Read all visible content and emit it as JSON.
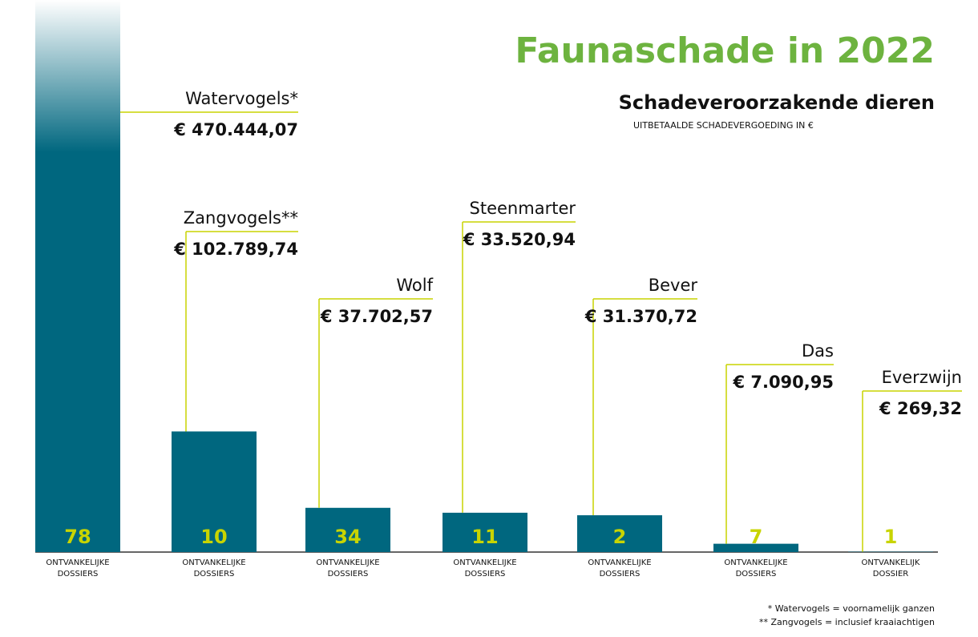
{
  "chart_data": {
    "type": "bar",
    "title": "Faunaschade in 2022",
    "subtitle": "Schadeveroorzakende dieren",
    "caption": "UITBETAALDE SCHADEVERGOEDING IN €",
    "categories": [
      "Watervogels*",
      "Zangvogels**",
      "Wolf",
      "Steenmarter",
      "Bever",
      "Das",
      "Everzwijn"
    ],
    "values": [
      470444.07,
      102789.74,
      37702.57,
      33520.94,
      31370.72,
      7090.95,
      269.32
    ],
    "value_labels": [
      "€ 470.444,07",
      "€ 102.789,74",
      "€ 37.702,57",
      "€ 33.520,94",
      "€ 31.370,72",
      "€ 7.090,95",
      "€ 269,32"
    ],
    "dossiers": [
      78,
      10,
      34,
      11,
      2,
      7,
      1
    ],
    "dossier_labels": [
      [
        "ONTVANKELIJKE",
        "DOSSIERS"
      ],
      [
        "ONTVANKELIJKE",
        "DOSSIERS"
      ],
      [
        "ONTVANKELIJKE",
        "DOSSIERS"
      ],
      [
        "ONTVANKELIJKE",
        "DOSSIERS"
      ],
      [
        "ONTVANKELIJKE",
        "DOSSIERS"
      ],
      [
        "ONTVANKELIJKE",
        "DOSSIERS"
      ],
      [
        "ONTVANKELIJK",
        "DOSSIER"
      ]
    ],
    "ylim": [
      0,
      470444.07
    ],
    "color": "#00677f",
    "footnotes": [
      "* Watervogels = voornamelijk ganzen",
      "** Zangvogels = inclusief kraaiachtigen"
    ]
  }
}
